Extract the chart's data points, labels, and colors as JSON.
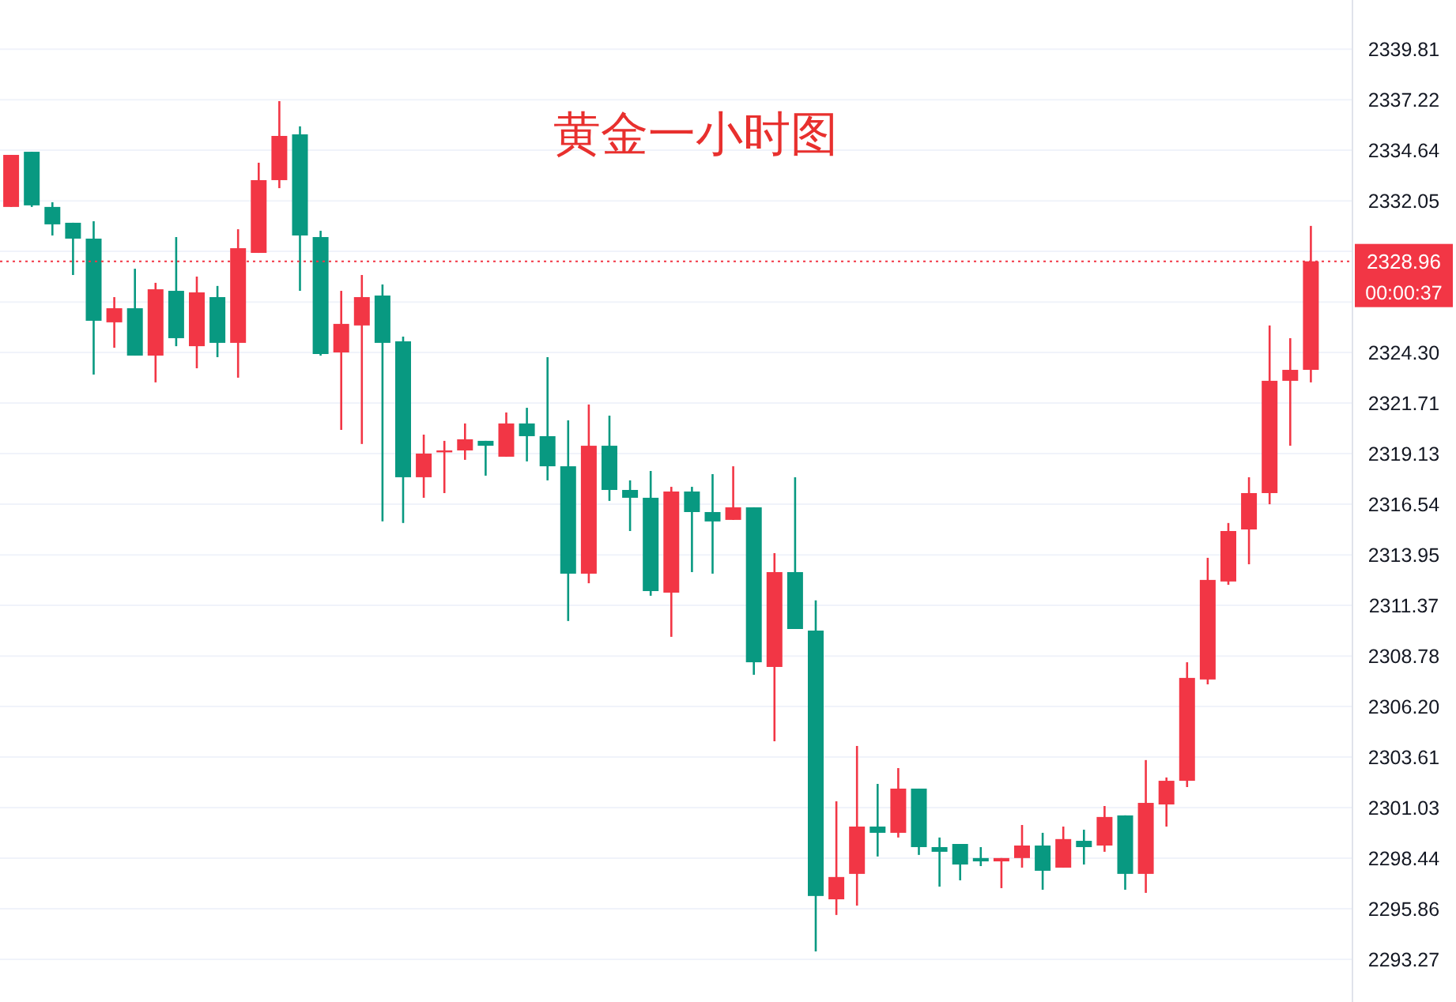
{
  "chart_data": {
    "type": "candlestick",
    "title": "黄金一小时图",
    "categories": [
      null,
      null,
      null,
      null,
      null,
      null,
      null,
      null,
      null,
      null,
      null,
      null,
      null,
      null,
      null,
      null,
      null,
      null,
      null,
      null,
      null,
      null,
      null,
      null,
      null,
      null,
      null,
      null,
      null,
      null,
      null,
      null,
      null,
      null,
      null,
      null,
      null,
      null,
      null,
      null,
      null,
      null,
      null,
      null,
      null,
      null,
      null,
      null,
      null,
      null,
      null,
      null,
      null,
      null,
      null,
      null,
      null,
      null,
      null,
      null,
      null,
      null,
      null,
      null
    ],
    "ohlc": [
      [
        2331.74,
        2334.4,
        2331.74,
        2334.4
      ],
      [
        2334.56,
        2334.56,
        2331.74,
        2331.82
      ],
      [
        2331.74,
        2331.98,
        2330.28,
        2330.85
      ],
      [
        2330.93,
        2330.93,
        2328.26,
        2330.12
      ],
      [
        2330.12,
        2331.01,
        2323.17,
        2325.92
      ],
      [
        2325.84,
        2327.13,
        2324.54,
        2326.56
      ],
      [
        2326.56,
        2328.58,
        2324.14,
        2324.14
      ],
      [
        2324.14,
        2327.86,
        2322.77,
        2327.53
      ],
      [
        2327.45,
        2330.2,
        2324.62,
        2325.03
      ],
      [
        2324.62,
        2328.18,
        2323.49,
        2327.37
      ],
      [
        2327.13,
        2327.7,
        2324.06,
        2324.79
      ],
      [
        2324.79,
        2330.6,
        2323.01,
        2329.63
      ],
      [
        2329.39,
        2334.0,
        2329.39,
        2333.11
      ],
      [
        2333.11,
        2337.15,
        2332.7,
        2335.37
      ],
      [
        2335.45,
        2335.86,
        2327.45,
        2330.28
      ],
      [
        2330.2,
        2330.52,
        2324.14,
        2324.22
      ],
      [
        2324.3,
        2327.45,
        2320.34,
        2325.76
      ],
      [
        2325.68,
        2328.26,
        2319.62,
        2327.13
      ],
      [
        2327.21,
        2327.78,
        2315.66,
        2324.79
      ],
      [
        2324.87,
        2325.11,
        2315.58,
        2317.92
      ],
      [
        2317.92,
        2320.1,
        2316.87,
        2319.13
      ],
      [
        2319.21,
        2319.78,
        2317.11,
        2319.29
      ],
      [
        2319.29,
        2320.67,
        2318.81,
        2319.86
      ],
      [
        2319.78,
        2319.78,
        2318.0,
        2319.53
      ],
      [
        2318.97,
        2321.23,
        2318.97,
        2320.67
      ],
      [
        2320.67,
        2321.47,
        2318.73,
        2320.02
      ],
      [
        2320.02,
        2324.06,
        2317.76,
        2318.48
      ],
      [
        2318.48,
        2320.83,
        2310.57,
        2312.99
      ],
      [
        2312.99,
        2321.64,
        2312.5,
        2319.53
      ],
      [
        2319.53,
        2321.07,
        2316.71,
        2317.27
      ],
      [
        2317.27,
        2317.76,
        2315.17,
        2316.87
      ],
      [
        2316.87,
        2318.24,
        2311.86,
        2312.1
      ],
      [
        2312.02,
        2317.43,
        2309.76,
        2317.19
      ],
      [
        2317.19,
        2317.43,
        2313.07,
        2316.14
      ],
      [
        2316.14,
        2318.08,
        2312.99,
        2315.66
      ],
      [
        2315.74,
        2318.48,
        2315.74,
        2316.38
      ],
      [
        2316.38,
        2316.38,
        2307.82,
        2308.46
      ],
      [
        2308.22,
        2314.04,
        2304.42,
        2313.07
      ],
      [
        2313.07,
        2317.92,
        2310.16,
        2310.16
      ],
      [
        2310.08,
        2311.62,
        2293.68,
        2296.51
      ],
      [
        2296.34,
        2301.35,
        2295.54,
        2297.48
      ],
      [
        2297.64,
        2304.18,
        2296.02,
        2300.06
      ],
      [
        2300.06,
        2302.24,
        2298.53,
        2299.74
      ],
      [
        2299.74,
        2303.05,
        2299.5,
        2302.0
      ],
      [
        2302.0,
        2302.0,
        2298.61,
        2299.01
      ],
      [
        2299.01,
        2299.5,
        2296.99,
        2298.77
      ],
      [
        2299.17,
        2299.17,
        2297.31,
        2298.12
      ],
      [
        2298.45,
        2299.01,
        2298.04,
        2298.28
      ],
      [
        2298.28,
        2298.45,
        2296.91,
        2298.45
      ],
      [
        2298.45,
        2300.14,
        2297.96,
        2299.09
      ],
      [
        2299.09,
        2299.74,
        2296.83,
        2297.8
      ],
      [
        2297.96,
        2300.06,
        2297.96,
        2299.42
      ],
      [
        2299.33,
        2299.9,
        2298.12,
        2299.01
      ],
      [
        2299.09,
        2301.11,
        2298.77,
        2300.55
      ],
      [
        2300.63,
        2300.63,
        2296.83,
        2297.64
      ],
      [
        2297.64,
        2303.46,
        2296.67,
        2301.27
      ],
      [
        2301.19,
        2302.57,
        2300.06,
        2302.4
      ],
      [
        2302.4,
        2308.46,
        2302.08,
        2307.66
      ],
      [
        2307.58,
        2313.8,
        2307.33,
        2312.67
      ],
      [
        2312.59,
        2315.58,
        2312.42,
        2315.17
      ],
      [
        2315.25,
        2317.92,
        2313.47,
        2317.11
      ],
      [
        2317.11,
        2325.68,
        2316.54,
        2322.85
      ],
      [
        2322.85,
        2325.03,
        2319.53,
        2323.41
      ],
      [
        2323.41,
        2330.77,
        2322.77,
        2328.96
      ]
    ],
    "colors": [
      "#f23645",
      "#089981",
      "#089981",
      "#089981",
      "#089981",
      "#f23645",
      "#089981",
      "#f23645",
      "#089981",
      "#f23645",
      "#089981",
      "#f23645",
      "#f23645",
      "#f23645",
      "#089981",
      "#089981",
      "#f23645",
      "#f23645",
      "#089981",
      "#089981",
      "#f23645",
      "#f23645",
      "#f23645",
      "#089981",
      "#f23645",
      "#089981",
      "#089981",
      "#089981",
      "#f23645",
      "#089981",
      "#089981",
      "#089981",
      "#f23645",
      "#089981",
      "#089981",
      "#f23645",
      "#089981",
      "#f23645",
      "#089981",
      "#089981",
      "#f23645",
      "#f23645",
      "#089981",
      "#f23645",
      "#089981",
      "#089981",
      "#089981",
      "#089981",
      "#f23645",
      "#f23645",
      "#089981",
      "#f23645",
      "#089981",
      "#f23645",
      "#089981",
      "#f23645",
      "#f23645",
      "#f23645",
      "#f23645",
      "#f23645",
      "#f23645",
      "#f23645",
      "#f23645",
      "#f23645"
    ],
    "ylim": [
      2291.09,
      2342.32
    ],
    "yticks": [
      2293.27,
      2295.86,
      2298.44,
      2301.03,
      2303.61,
      {
        "value": 2306.2,
        "label": "2306.20"
      },
      2308.78,
      2311.37,
      2313.95,
      2316.54,
      2319.13,
      2321.71,
      {
        "value": 2324.3,
        "label": "2324.30"
      },
      {
        "value": 2326.88,
        "label": null
      },
      {
        "value": 2329.47,
        "label": null
      },
      2332.05,
      2334.64,
      2337.22,
      2339.81
    ],
    "grid": "y",
    "ref_lines": [
      {
        "axis": "y",
        "value": 2328.96,
        "label": "2328.96",
        "color": "#f23645",
        "line_style": "dotted"
      }
    ],
    "annotations": [
      "00:00:37"
    ]
  }
}
